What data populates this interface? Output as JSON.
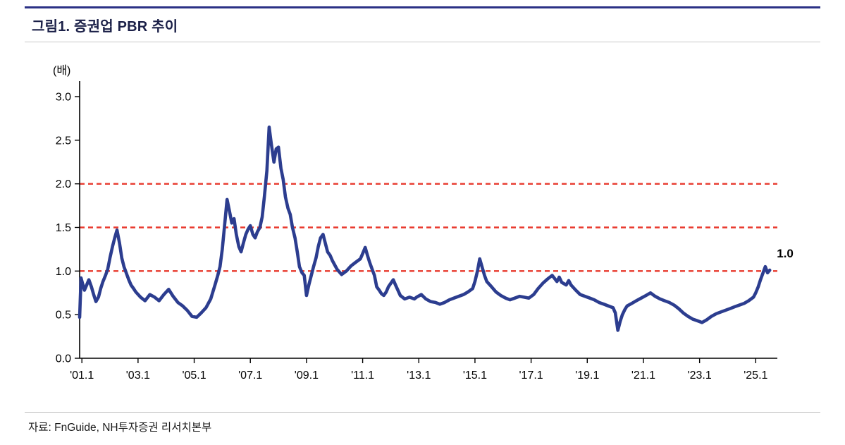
{
  "figure": {
    "source": "자료: FnGuide, NH투자증권 리서치본부"
  },
  "chart_data": {
    "type": "line",
    "title": "그림1. 증권업 PBR 추이",
    "ylabel": "(배)",
    "xlabel": "",
    "ylim": [
      0.0,
      3.0
    ],
    "xlim": [
      2001.0,
      2025.85
    ],
    "grid": false,
    "legend": "none",
    "line_color": "#2c3d8f",
    "reference_color": "#e8392d",
    "reference_lines": [
      1.0,
      1.5,
      2.0
    ],
    "end_label": "1.0",
    "y_ticks": [
      "0.0",
      "0.5",
      "1.0",
      "1.5",
      "2.0",
      "2.5",
      "3.0"
    ],
    "x_ticks": [
      {
        "label": "'01.1",
        "value": 2001.08
      },
      {
        "label": "'03.1",
        "value": 2003.08
      },
      {
        "label": "'05.1",
        "value": 2005.08
      },
      {
        "label": "'07.1",
        "value": 2007.08
      },
      {
        "label": "'09.1",
        "value": 2009.08
      },
      {
        "label": "'11.1",
        "value": 2011.08
      },
      {
        "label": "'13.1",
        "value": 2013.08
      },
      {
        "label": "'15.1",
        "value": 2015.08
      },
      {
        "label": "'17.1",
        "value": 2017.08
      },
      {
        "label": "'19.1",
        "value": 2019.08
      },
      {
        "label": "'21.1",
        "value": 2021.08
      },
      {
        "label": "'23.1",
        "value": 2023.08
      },
      {
        "label": "'25.1",
        "value": 2025.08
      }
    ],
    "series": [
      {
        "name": "증권업 PBR",
        "points": [
          [
            2001.0,
            0.47
          ],
          [
            2001.05,
            0.92
          ],
          [
            2001.1,
            0.86
          ],
          [
            2001.17,
            0.78
          ],
          [
            2001.25,
            0.84
          ],
          [
            2001.33,
            0.9
          ],
          [
            2001.42,
            0.82
          ],
          [
            2001.5,
            0.73
          ],
          [
            2001.58,
            0.65
          ],
          [
            2001.67,
            0.7
          ],
          [
            2001.75,
            0.8
          ],
          [
            2001.83,
            0.88
          ],
          [
            2001.92,
            0.95
          ],
          [
            2002.0,
            1.02
          ],
          [
            2002.08,
            1.15
          ],
          [
            2002.17,
            1.28
          ],
          [
            2002.25,
            1.38
          ],
          [
            2002.33,
            1.47
          ],
          [
            2002.42,
            1.32
          ],
          [
            2002.5,
            1.15
          ],
          [
            2002.58,
            1.05
          ],
          [
            2002.67,
            0.97
          ],
          [
            2002.75,
            0.9
          ],
          [
            2002.83,
            0.84
          ],
          [
            2002.92,
            0.8
          ],
          [
            2003.0,
            0.76
          ],
          [
            2003.17,
            0.7
          ],
          [
            2003.33,
            0.66
          ],
          [
            2003.5,
            0.73
          ],
          [
            2003.67,
            0.7
          ],
          [
            2003.83,
            0.66
          ],
          [
            2004.0,
            0.73
          ],
          [
            2004.17,
            0.79
          ],
          [
            2004.33,
            0.71
          ],
          [
            2004.5,
            0.64
          ],
          [
            2004.67,
            0.6
          ],
          [
            2004.83,
            0.55
          ],
          [
            2005.0,
            0.48
          ],
          [
            2005.17,
            0.47
          ],
          [
            2005.33,
            0.52
          ],
          [
            2005.5,
            0.58
          ],
          [
            2005.67,
            0.68
          ],
          [
            2005.83,
            0.85
          ],
          [
            2005.92,
            0.95
          ],
          [
            2006.0,
            1.05
          ],
          [
            2006.08,
            1.25
          ],
          [
            2006.17,
            1.55
          ],
          [
            2006.25,
            1.82
          ],
          [
            2006.33,
            1.7
          ],
          [
            2006.42,
            1.55
          ],
          [
            2006.5,
            1.6
          ],
          [
            2006.58,
            1.42
          ],
          [
            2006.67,
            1.28
          ],
          [
            2006.75,
            1.22
          ],
          [
            2006.83,
            1.32
          ],
          [
            2006.92,
            1.42
          ],
          [
            2007.0,
            1.48
          ],
          [
            2007.08,
            1.52
          ],
          [
            2007.17,
            1.42
          ],
          [
            2007.25,
            1.38
          ],
          [
            2007.33,
            1.45
          ],
          [
            2007.42,
            1.5
          ],
          [
            2007.5,
            1.62
          ],
          [
            2007.58,
            1.85
          ],
          [
            2007.67,
            2.15
          ],
          [
            2007.75,
            2.65
          ],
          [
            2007.83,
            2.45
          ],
          [
            2007.92,
            2.25
          ],
          [
            2008.0,
            2.4
          ],
          [
            2008.08,
            2.42
          ],
          [
            2008.17,
            2.18
          ],
          [
            2008.25,
            2.05
          ],
          [
            2008.33,
            1.85
          ],
          [
            2008.42,
            1.72
          ],
          [
            2008.5,
            1.65
          ],
          [
            2008.58,
            1.5
          ],
          [
            2008.67,
            1.38
          ],
          [
            2008.75,
            1.22
          ],
          [
            2008.83,
            1.05
          ],
          [
            2008.92,
            0.98
          ],
          [
            2009.0,
            0.95
          ],
          [
            2009.08,
            0.72
          ],
          [
            2009.17,
            0.85
          ],
          [
            2009.25,
            0.95
          ],
          [
            2009.33,
            1.05
          ],
          [
            2009.42,
            1.15
          ],
          [
            2009.5,
            1.28
          ],
          [
            2009.58,
            1.38
          ],
          [
            2009.67,
            1.42
          ],
          [
            2009.75,
            1.32
          ],
          [
            2009.83,
            1.22
          ],
          [
            2009.92,
            1.18
          ],
          [
            2010.0,
            1.12
          ],
          [
            2010.17,
            1.02
          ],
          [
            2010.33,
            0.96
          ],
          [
            2010.5,
            1.0
          ],
          [
            2010.67,
            1.06
          ],
          [
            2010.83,
            1.1
          ],
          [
            2011.0,
            1.14
          ],
          [
            2011.08,
            1.2
          ],
          [
            2011.17,
            1.27
          ],
          [
            2011.25,
            1.18
          ],
          [
            2011.33,
            1.1
          ],
          [
            2011.42,
            1.02
          ],
          [
            2011.5,
            0.95
          ],
          [
            2011.58,
            0.82
          ],
          [
            2011.67,
            0.78
          ],
          [
            2011.75,
            0.74
          ],
          [
            2011.83,
            0.72
          ],
          [
            2011.92,
            0.76
          ],
          [
            2012.0,
            0.82
          ],
          [
            2012.17,
            0.9
          ],
          [
            2012.25,
            0.84
          ],
          [
            2012.42,
            0.72
          ],
          [
            2012.58,
            0.68
          ],
          [
            2012.75,
            0.7
          ],
          [
            2012.92,
            0.68
          ],
          [
            2013.0,
            0.7
          ],
          [
            2013.17,
            0.73
          ],
          [
            2013.33,
            0.68
          ],
          [
            2013.5,
            0.65
          ],
          [
            2013.67,
            0.64
          ],
          [
            2013.83,
            0.62
          ],
          [
            2014.0,
            0.64
          ],
          [
            2014.17,
            0.67
          ],
          [
            2014.33,
            0.69
          ],
          [
            2014.5,
            0.71
          ],
          [
            2014.67,
            0.73
          ],
          [
            2014.83,
            0.76
          ],
          [
            2015.0,
            0.8
          ],
          [
            2015.08,
            0.88
          ],
          [
            2015.17,
            1.0
          ],
          [
            2015.25,
            1.14
          ],
          [
            2015.33,
            1.05
          ],
          [
            2015.42,
            0.95
          ],
          [
            2015.5,
            0.88
          ],
          [
            2015.67,
            0.82
          ],
          [
            2015.83,
            0.76
          ],
          [
            2016.0,
            0.72
          ],
          [
            2016.17,
            0.69
          ],
          [
            2016.33,
            0.67
          ],
          [
            2016.5,
            0.69
          ],
          [
            2016.67,
            0.71
          ],
          [
            2016.83,
            0.7
          ],
          [
            2017.0,
            0.69
          ],
          [
            2017.17,
            0.73
          ],
          [
            2017.33,
            0.8
          ],
          [
            2017.5,
            0.86
          ],
          [
            2017.67,
            0.91
          ],
          [
            2017.83,
            0.95
          ],
          [
            2018.0,
            0.88
          ],
          [
            2018.08,
            0.93
          ],
          [
            2018.17,
            0.87
          ],
          [
            2018.33,
            0.84
          ],
          [
            2018.42,
            0.89
          ],
          [
            2018.5,
            0.84
          ],
          [
            2018.67,
            0.78
          ],
          [
            2018.83,
            0.73
          ],
          [
            2019.0,
            0.71
          ],
          [
            2019.17,
            0.69
          ],
          [
            2019.33,
            0.67
          ],
          [
            2019.5,
            0.64
          ],
          [
            2019.67,
            0.62
          ],
          [
            2019.83,
            0.6
          ],
          [
            2020.0,
            0.58
          ],
          [
            2020.08,
            0.52
          ],
          [
            2020.17,
            0.32
          ],
          [
            2020.25,
            0.42
          ],
          [
            2020.33,
            0.5
          ],
          [
            2020.42,
            0.56
          ],
          [
            2020.5,
            0.6
          ],
          [
            2020.67,
            0.63
          ],
          [
            2020.83,
            0.66
          ],
          [
            2021.0,
            0.69
          ],
          [
            2021.17,
            0.72
          ],
          [
            2021.33,
            0.75
          ],
          [
            2021.5,
            0.71
          ],
          [
            2021.67,
            0.68
          ],
          [
            2021.83,
            0.66
          ],
          [
            2022.0,
            0.64
          ],
          [
            2022.17,
            0.61
          ],
          [
            2022.33,
            0.57
          ],
          [
            2022.5,
            0.52
          ],
          [
            2022.67,
            0.48
          ],
          [
            2022.83,
            0.45
          ],
          [
            2023.0,
            0.43
          ],
          [
            2023.17,
            0.41
          ],
          [
            2023.33,
            0.44
          ],
          [
            2023.5,
            0.48
          ],
          [
            2023.67,
            0.51
          ],
          [
            2023.83,
            0.53
          ],
          [
            2024.0,
            0.55
          ],
          [
            2024.17,
            0.57
          ],
          [
            2024.33,
            0.59
          ],
          [
            2024.5,
            0.61
          ],
          [
            2024.67,
            0.63
          ],
          [
            2024.83,
            0.66
          ],
          [
            2025.0,
            0.7
          ],
          [
            2025.08,
            0.75
          ],
          [
            2025.17,
            0.82
          ],
          [
            2025.25,
            0.9
          ],
          [
            2025.33,
            0.97
          ],
          [
            2025.42,
            1.05
          ],
          [
            2025.5,
            0.98
          ],
          [
            2025.58,
            1.01
          ]
        ]
      }
    ]
  }
}
